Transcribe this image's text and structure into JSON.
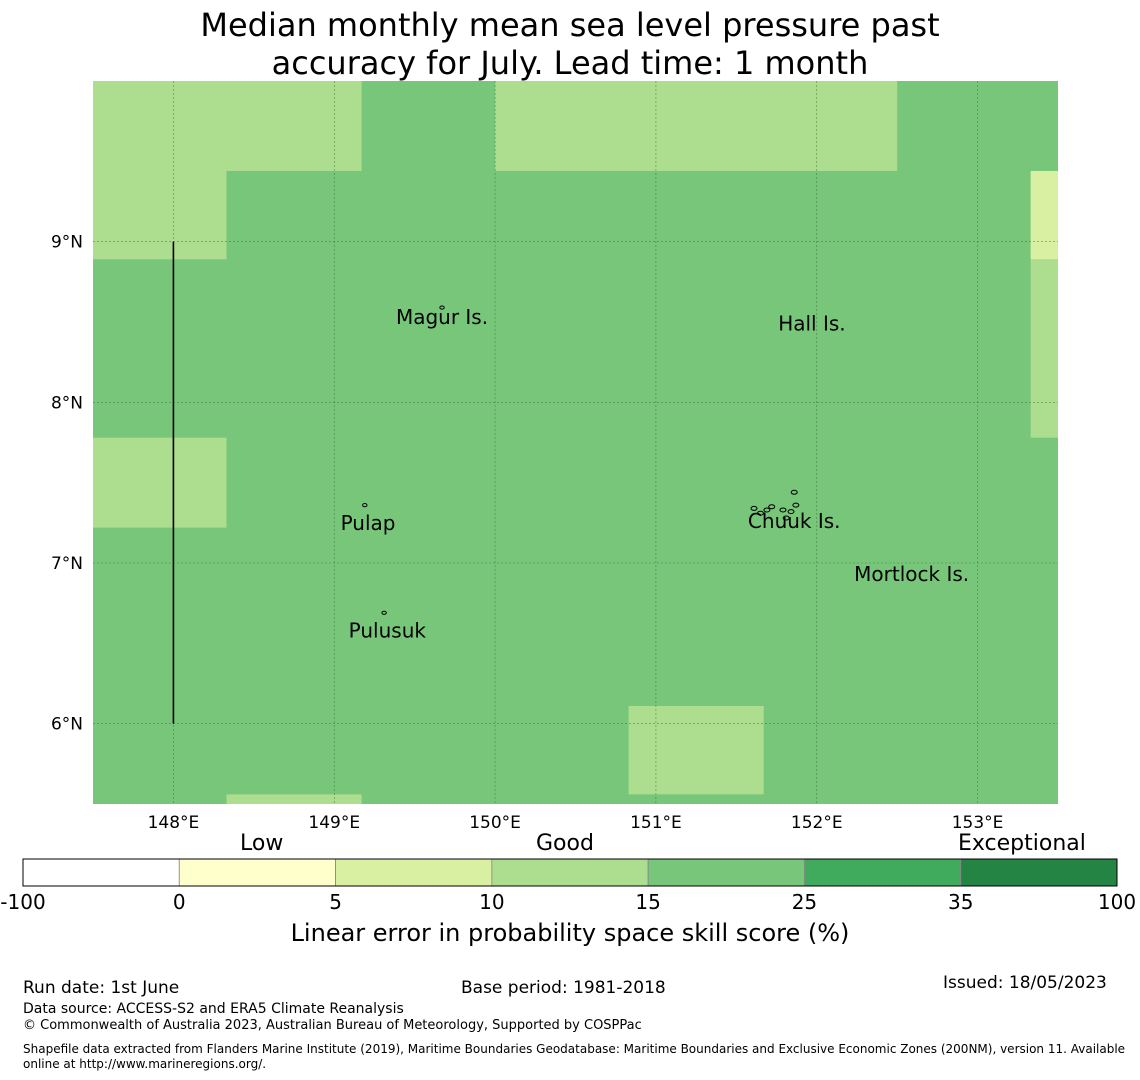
{
  "title": {
    "line1": "Median monthly mean sea level pressure past",
    "line2": "accuracy for July. Lead time: 1 month"
  },
  "map": {
    "lon_range": [
      147.5,
      153.5
    ],
    "lat_range": [
      5.5,
      10.0
    ],
    "lon_ticks": [
      {
        "value": 148,
        "label": "148°E"
      },
      {
        "value": 149,
        "label": "149°E"
      },
      {
        "value": 150,
        "label": "150°E"
      },
      {
        "value": 151,
        "label": "151°E"
      },
      {
        "value": 152,
        "label": "152°E"
      },
      {
        "value": 153,
        "label": "153°E"
      }
    ],
    "lat_ticks": [
      {
        "value": 9,
        "label": "9°N"
      },
      {
        "value": 8,
        "label": "8°N"
      },
      {
        "value": 7,
        "label": "7°N"
      },
      {
        "value": 6,
        "label": "6°N"
      }
    ],
    "gridlines": true,
    "background_class_color": "#78c679",
    "cells": [
      {
        "lon": [
          147.5,
          148.33
        ],
        "lat": [
          8.89,
          10.0
        ],
        "color": "#addd8e"
      },
      {
        "lon": [
          148.33,
          149.17
        ],
        "lat": [
          9.44,
          10.0
        ],
        "color": "#addd8e"
      },
      {
        "lon": [
          150.0,
          152.5
        ],
        "lat": [
          9.44,
          10.0
        ],
        "color": "#addd8e"
      },
      {
        "lon": [
          153.33,
          153.5
        ],
        "lat": [
          8.89,
          9.44
        ],
        "color": "#d9f0a3"
      },
      {
        "lon": [
          153.33,
          153.5
        ],
        "lat": [
          7.78,
          8.89
        ],
        "color": "#addd8e"
      },
      {
        "lon": [
          147.5,
          148.33
        ],
        "lat": [
          7.22,
          7.78
        ],
        "color": "#addd8e"
      },
      {
        "lon": [
          150.83,
          151.67
        ],
        "lat": [
          5.56,
          6.11
        ],
        "color": "#addd8e"
      },
      {
        "lon": [
          148.33,
          149.17
        ],
        "lat": [
          5.5,
          5.56
        ],
        "color": "#addd8e"
      }
    ],
    "boundary_line": {
      "lon": 148.0,
      "lat": [
        6.0,
        9.0
      ]
    },
    "places": [
      {
        "name": "Magur Is.",
        "lon": 149.67,
        "lat": 8.53
      },
      {
        "name": "Hall Is.",
        "lon": 151.97,
        "lat": 8.49
      },
      {
        "name": "Pulap",
        "lon": 149.21,
        "lat": 7.25
      },
      {
        "name": "Chuuk Is.",
        "lon": 151.86,
        "lat": 7.26
      },
      {
        "name": "Mortlock Is.",
        "lon": 152.59,
        "lat": 6.93
      },
      {
        "name": "Pulusuk",
        "lon": 149.33,
        "lat": 6.58
      }
    ]
  },
  "colorbar": {
    "categories": [
      "Low",
      "Good",
      "Exceptional"
    ],
    "bins": [
      {
        "from": -100,
        "to": 0,
        "color": "#ffffff"
      },
      {
        "from": 0,
        "to": 5,
        "color": "#ffffcc"
      },
      {
        "from": 5,
        "to": 10,
        "color": "#d9f0a3"
      },
      {
        "from": 10,
        "to": 15,
        "color": "#addd8e"
      },
      {
        "from": 15,
        "to": 25,
        "color": "#78c679"
      },
      {
        "from": 25,
        "to": 35,
        "color": "#41ab5d"
      },
      {
        "from": 35,
        "to": 100,
        "color": "#238443"
      }
    ],
    "tick_labels": [
      "-100",
      "0",
      "5",
      "10",
      "15",
      "25",
      "35",
      "100"
    ],
    "label": "Linear error in probability space skill score (%)"
  },
  "footer": {
    "run_date": "Run date: 1st June",
    "base_period": "Base period: 1981-2018",
    "issued": "Issued: 18/05/2023",
    "data_source": "Data source: ACCESS-S2 and ERA5 Climate Reanalysis",
    "copyright": "© Commonwealth of Australia 2023, Australian Bureau of Meteorology, Supported by COSPPac",
    "shapefile_line1": "Shapefile data extracted from Flanders Marine Institute (2019), Maritime Boundaries Geodatabase: Maritime Boundaries and Exclusive Economic Zones (200NM), version 11. Available",
    "shapefile_line2": "online at http://www.marineregions.org/."
  }
}
